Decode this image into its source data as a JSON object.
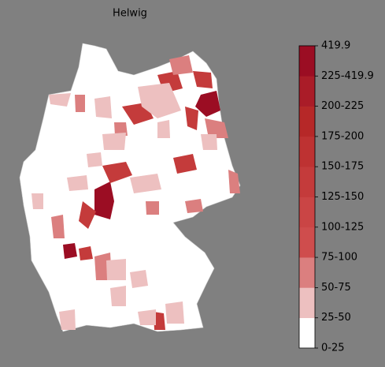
{
  "title": "Helwig",
  "colorbar": {
    "labels": [
      "0-25",
      "25-50",
      "50-75",
      "75-100",
      "100-125",
      "125-150",
      "150-175",
      "175-200",
      "200-225",
      "225-419.9",
      "419.9"
    ],
    "colors": [
      "#ffffff",
      "#edc0c0",
      "#db7f7f",
      "#cf4d4d",
      "#ca4545",
      "#c43b3b",
      "#be3232",
      "#b62828",
      "#aa1c28",
      "#9b0d23"
    ]
  }
}
